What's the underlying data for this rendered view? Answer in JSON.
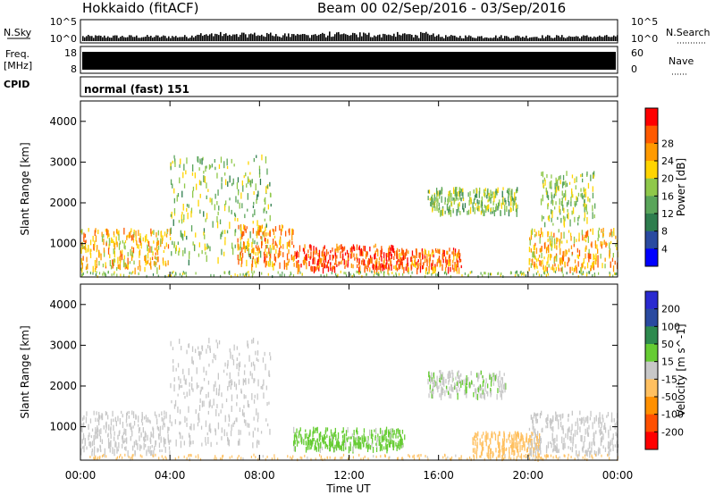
{
  "header": {
    "station": "Hokkaido (fitACF)",
    "beam_info": "Beam 00  02/Sep/2016 - 03/Sep/2016"
  },
  "noise_panel": {
    "left_label": "N.Sky",
    "right_label": "N.Search",
    "left_ticks": [
      "10^5",
      "10^0"
    ],
    "right_ticks": [
      "10^5",
      "10^0"
    ]
  },
  "freq_panel": {
    "left_label_line1": "Freq.",
    "left_label_line2": "[MHz]",
    "right_label": "Nave",
    "left_ticks": [
      "18",
      "8"
    ],
    "right_ticks": [
      "60",
      "0"
    ]
  },
  "cpid": {
    "label": "CPID",
    "value": "normal (fast) 151"
  },
  "colors": {
    "power_scale": [
      "#0000ff",
      "#2a4aa0",
      "#2e7d4e",
      "#5aa55a",
      "#8fc84a",
      "#ffd400",
      "#ff9a00",
      "#ff5a00",
      "#ff0000"
    ],
    "velocity_scale": [
      "#2a2ad0",
      "#2a4aa0",
      "#2e8a4e",
      "#66cc33",
      "#c8c8c8",
      "#ffc060",
      "#ff9000",
      "#ff5000",
      "#ff0000"
    ]
  },
  "chart_data": [
    {
      "type": "heatmap",
      "title": "",
      "xlabel": "",
      "ylabel": "Slant Range [km]",
      "xlim": [
        "00:00",
        "00:00"
      ],
      "ylim": [
        180,
        4500
      ],
      "x_ticks": [
        "00:00",
        "04:00",
        "08:00",
        "12:00",
        "16:00",
        "20:00",
        "00:00"
      ],
      "y_ticks": [
        1000,
        2000,
        3000,
        4000
      ],
      "colorbar": {
        "label": "Power [dB]",
        "ticks": [
          4,
          8,
          12,
          16,
          20,
          24,
          28
        ],
        "range": [
          0,
          30
        ]
      },
      "regions": [
        {
          "t_start": 0.0,
          "t_end": 4.0,
          "r_min": 400,
          "r_max": 1400,
          "value": 20
        },
        {
          "t_start": 4.0,
          "t_end": 8.5,
          "r_min": 600,
          "r_max": 3200,
          "value": 14
        },
        {
          "t_start": 7.0,
          "t_end": 9.5,
          "r_min": 500,
          "r_max": 1500,
          "value": 22
        },
        {
          "t_start": 9.5,
          "t_end": 14.0,
          "r_min": 400,
          "r_max": 1000,
          "value": 26
        },
        {
          "t_start": 14.0,
          "t_end": 17.0,
          "r_min": 400,
          "r_max": 900,
          "value": 24
        },
        {
          "t_start": 15.5,
          "t_end": 19.5,
          "r_min": 1800,
          "r_max": 2400,
          "value": 14
        },
        {
          "t_start": 20.0,
          "t_end": 24.0,
          "r_min": 400,
          "r_max": 1400,
          "value": 20
        },
        {
          "t_start": 20.5,
          "t_end": 23.0,
          "r_min": 1500,
          "r_max": 2800,
          "value": 15
        }
      ]
    },
    {
      "type": "heatmap",
      "title": "",
      "xlabel": "Time UT",
      "ylabel": "Slant Range [km]",
      "xlim": [
        "00:00",
        "00:00"
      ],
      "ylim": [
        180,
        4500
      ],
      "x_ticks": [
        "00:00",
        "04:00",
        "08:00",
        "12:00",
        "16:00",
        "20:00",
        "00:00"
      ],
      "y_ticks": [
        1000,
        2000,
        3000,
        4000
      ],
      "colorbar": {
        "label": "Velocity [m s^-1]",
        "ticks": [
          200,
          100,
          50,
          15,
          -15,
          -50,
          -100,
          -200
        ],
        "range": [
          -250,
          250
        ]
      },
      "regions": [
        {
          "t_start": 0.0,
          "t_end": 4.0,
          "r_min": 400,
          "r_max": 1400,
          "value": 0
        },
        {
          "t_start": 4.0,
          "t_end": 8.5,
          "r_min": 600,
          "r_max": 3200,
          "value": 0
        },
        {
          "t_start": 9.5,
          "t_end": 14.5,
          "r_min": 500,
          "r_max": 1000,
          "value": 40
        },
        {
          "t_start": 15.5,
          "t_end": 19.0,
          "r_min": 1800,
          "r_max": 2400,
          "value": 20
        },
        {
          "t_start": 17.5,
          "t_end": 20.5,
          "r_min": 300,
          "r_max": 900,
          "value": -60
        },
        {
          "t_start": 20.0,
          "t_end": 24.0,
          "r_min": 400,
          "r_max": 1400,
          "value": 0
        }
      ]
    }
  ]
}
